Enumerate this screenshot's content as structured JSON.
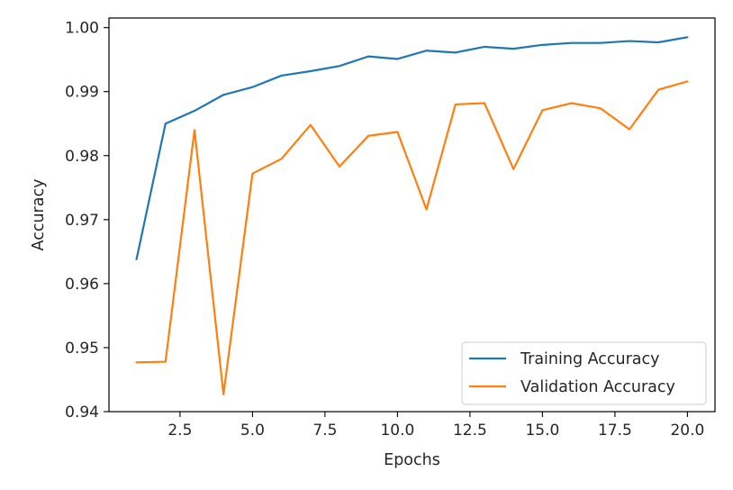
{
  "chart_data": {
    "type": "line",
    "title": "",
    "xlabel": "Epochs",
    "ylabel": "Accuracy",
    "xlim": [
      0.05,
      20.95
    ],
    "ylim": [
      0.94,
      1.0015
    ],
    "xticks": [
      2.5,
      5.0,
      7.5,
      10.0,
      12.5,
      15.0,
      17.5,
      20.0
    ],
    "xtick_labels": [
      "2.5",
      "5.0",
      "7.5",
      "10.0",
      "12.5",
      "15.0",
      "17.5",
      "20.0"
    ],
    "yticks": [
      0.94,
      0.95,
      0.96,
      0.97,
      0.98,
      0.99,
      1.0
    ],
    "ytick_labels": [
      "0.94",
      "0.95",
      "0.96",
      "0.97",
      "0.98",
      "0.99",
      "1.00"
    ],
    "grid": false,
    "legend_position": "bottom-right",
    "x": [
      1,
      2,
      3,
      4,
      5,
      6,
      7,
      8,
      9,
      10,
      11,
      12,
      13,
      14,
      15,
      16,
      17,
      18,
      19,
      20
    ],
    "series": [
      {
        "name": "Training Accuracy",
        "color": "#1f77b4",
        "values": [
          0.9638,
          0.985,
          0.987,
          0.9895,
          0.9907,
          0.9925,
          0.9932,
          0.994,
          0.9955,
          0.9951,
          0.9964,
          0.9961,
          0.997,
          0.9967,
          0.9973,
          0.9976,
          0.9976,
          0.9979,
          0.9977,
          0.9985
        ]
      },
      {
        "name": "Validation Accuracy",
        "color": "#ff7f0e",
        "values": [
          0.9477,
          0.9478,
          0.984,
          0.9427,
          0.9772,
          0.9795,
          0.9848,
          0.9783,
          0.9831,
          0.9837,
          0.9716,
          0.988,
          0.9882,
          0.9779,
          0.9871,
          0.9882,
          0.9874,
          0.9841,
          0.9903,
          0.9916
        ]
      }
    ]
  }
}
